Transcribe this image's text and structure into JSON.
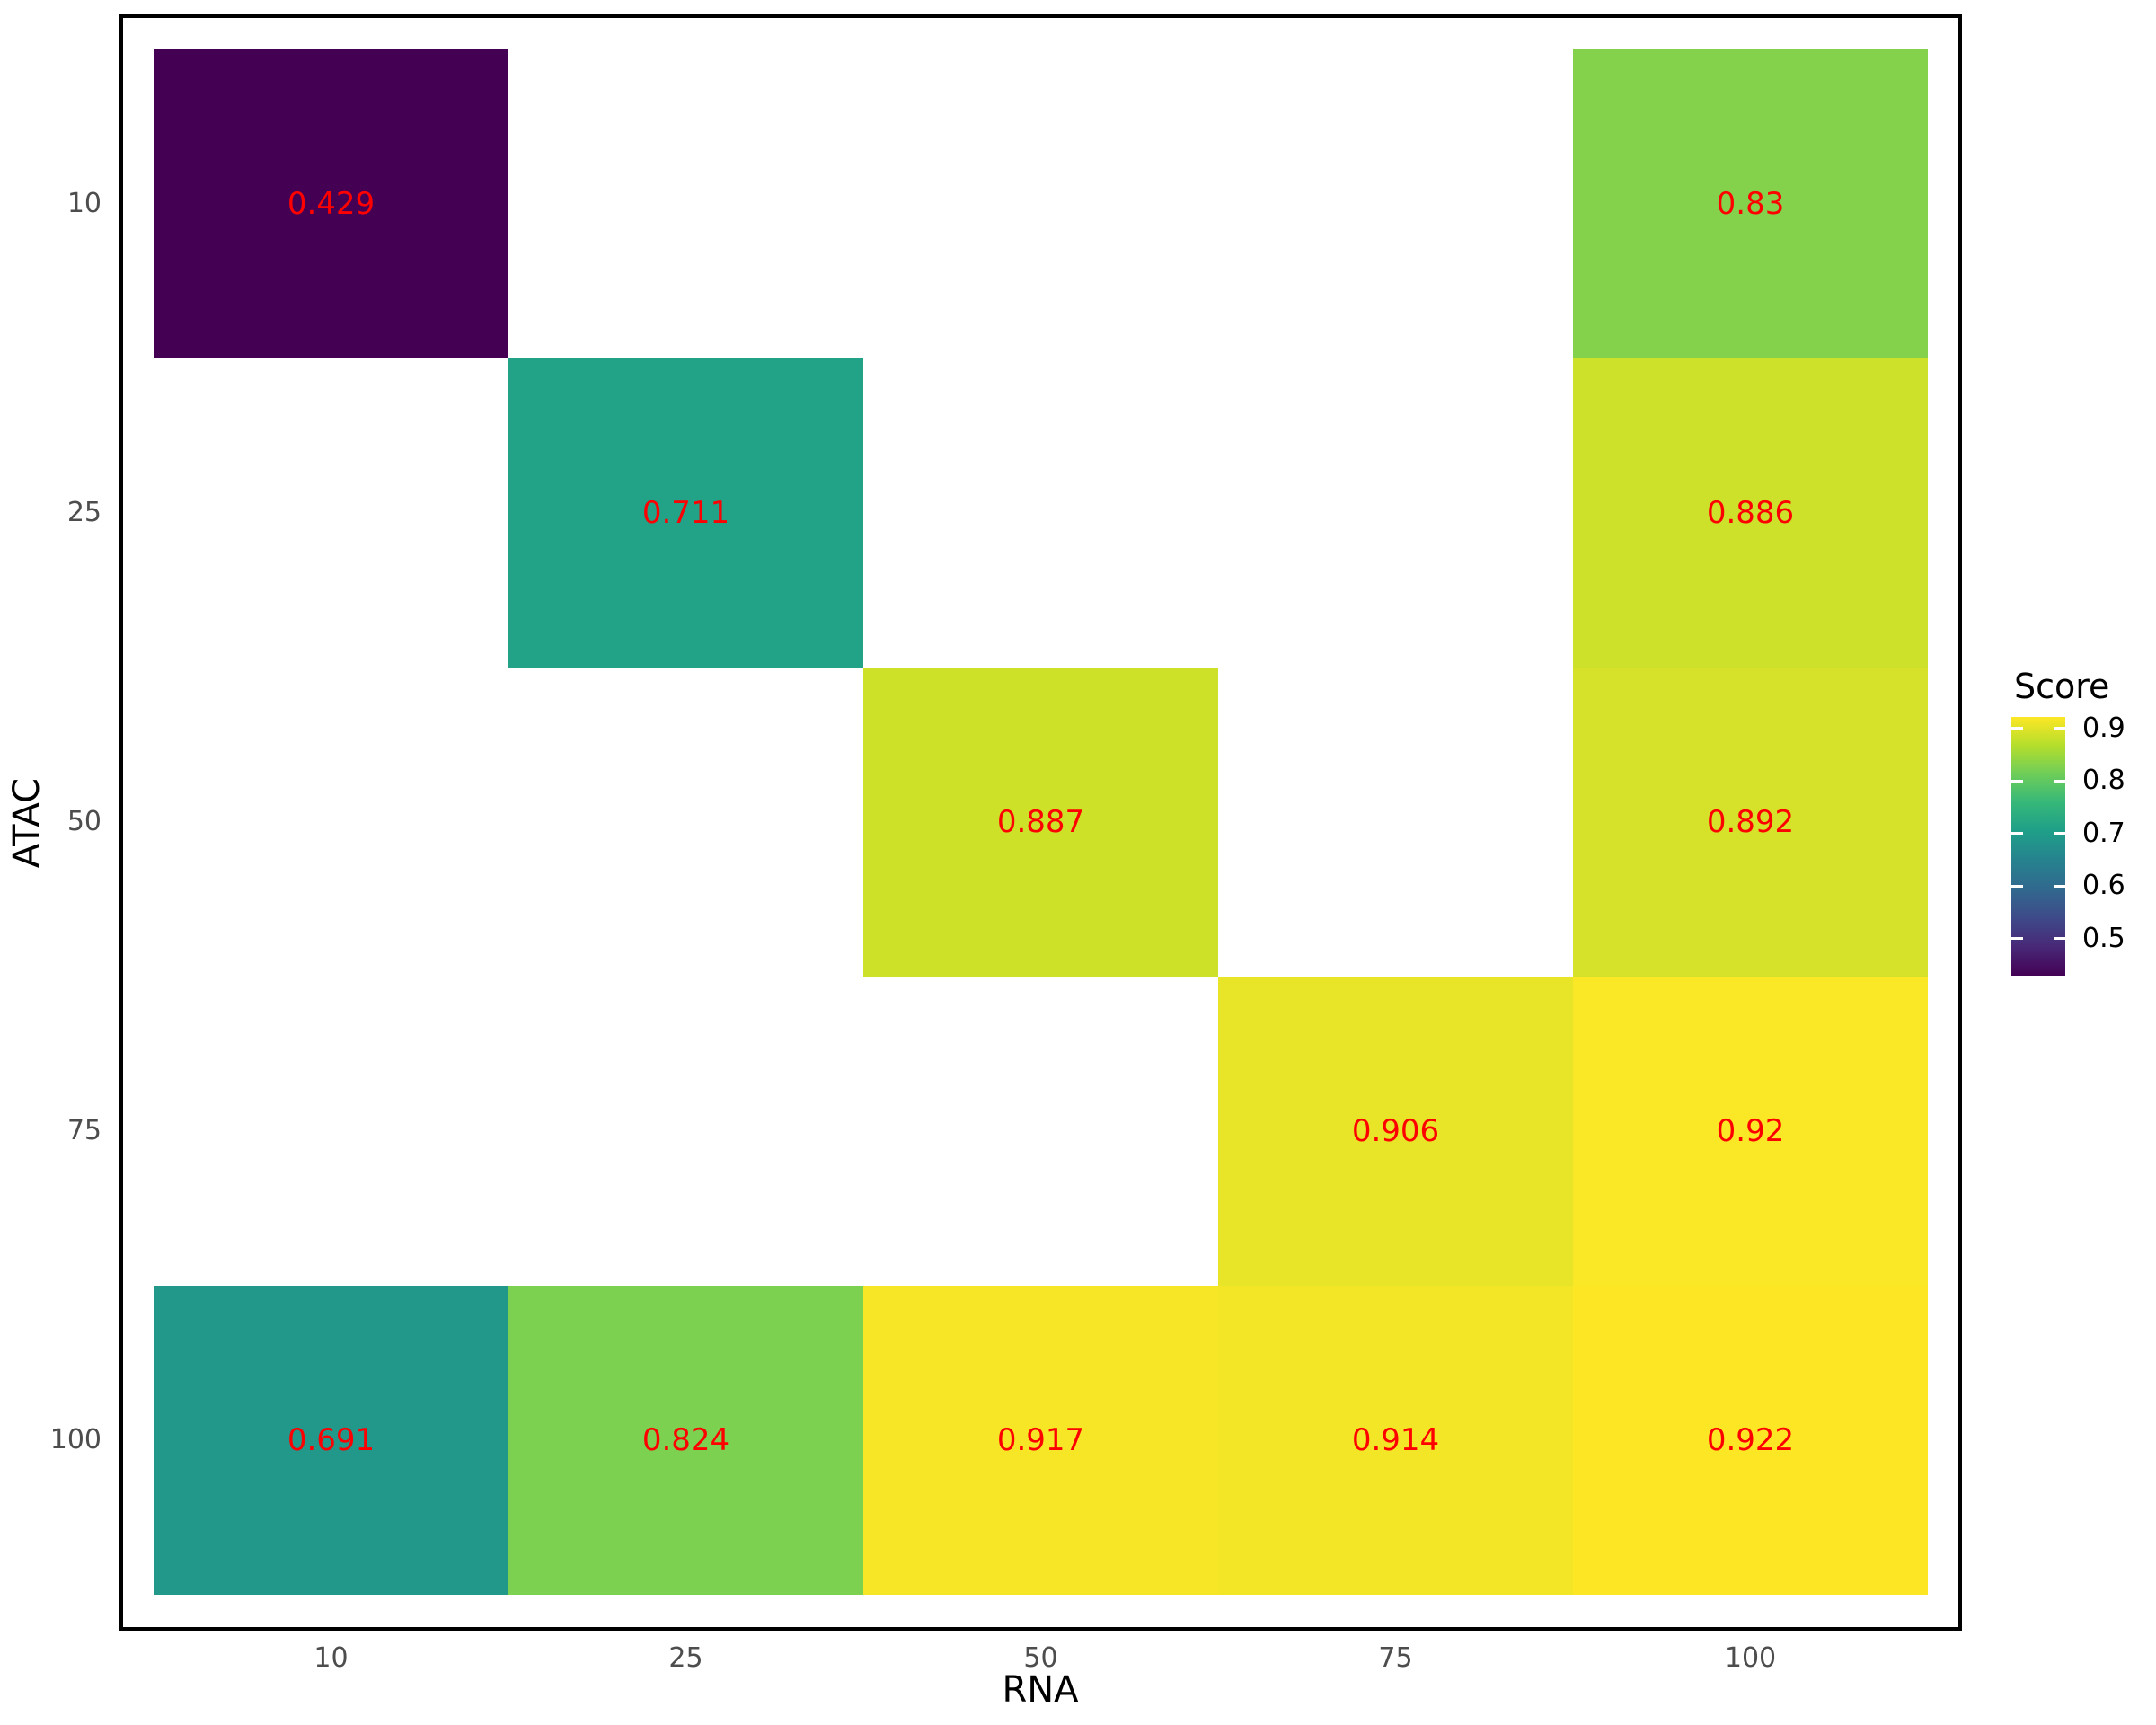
{
  "chart_data": {
    "type": "heatmap",
    "xlabel": "RNA",
    "ylabel": "ATAC",
    "x_categories": [
      "10",
      "25",
      "50",
      "75",
      "100"
    ],
    "y_categories": [
      "10",
      "25",
      "50",
      "75",
      "100"
    ],
    "cells": [
      {
        "x": "10",
        "y": "10",
        "value": 0.429
      },
      {
        "x": "100",
        "y": "10",
        "value": 0.83
      },
      {
        "x": "25",
        "y": "25",
        "value": 0.711
      },
      {
        "x": "100",
        "y": "25",
        "value": 0.886
      },
      {
        "x": "50",
        "y": "50",
        "value": 0.887
      },
      {
        "x": "100",
        "y": "50",
        "value": 0.892
      },
      {
        "x": "75",
        "y": "75",
        "value": 0.906
      },
      {
        "x": "100",
        "y": "75",
        "value": 0.92
      },
      {
        "x": "10",
        "y": "100",
        "value": 0.691
      },
      {
        "x": "25",
        "y": "100",
        "value": 0.824
      },
      {
        "x": "50",
        "y": "100",
        "value": 0.917
      },
      {
        "x": "75",
        "y": "100",
        "value": 0.914
      },
      {
        "x": "100",
        "y": "100",
        "value": 0.922
      }
    ],
    "value_label_color": "#FF0000",
    "color_domain": [
      0.429,
      0.922
    ],
    "colormap": {
      "name": "viridis",
      "stops": [
        "#440154",
        "#482878",
        "#3E4A89",
        "#31688E",
        "#26828E",
        "#1F9E89",
        "#35B779",
        "#6DCD59",
        "#B4DE2C",
        "#FDE725"
      ]
    },
    "legend": {
      "title": "Score",
      "ticks": [
        0.9,
        0.8,
        0.7,
        0.6,
        0.5
      ],
      "position": "right"
    },
    "grid": "off",
    "panel_border_color": "#000000",
    "tick_label_color": "#4D4D4D"
  }
}
